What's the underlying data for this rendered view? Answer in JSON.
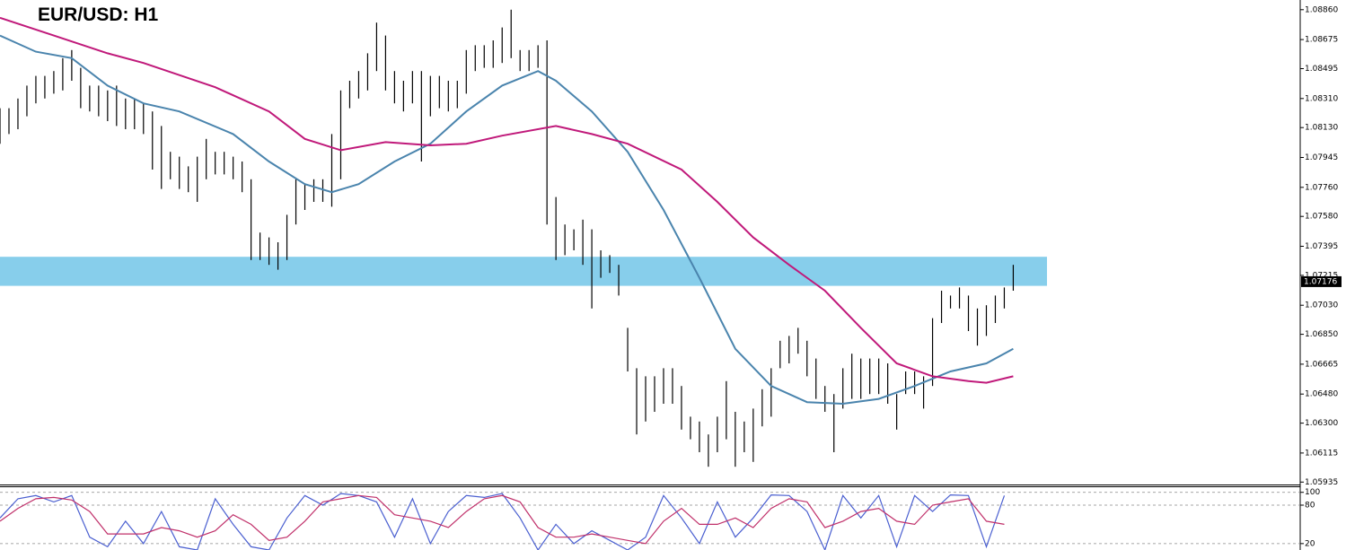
{
  "chart_data": [
    {
      "type": "ohlc",
      "title": "EUR/USD: H1",
      "xlim": [
        0,
        145
      ],
      "ylim": [
        1.0592,
        1.0892
      ],
      "yticks": [
        {
          "value": 1.0886,
          "label": "1.08860"
        },
        1.08675,
        1.08495,
        {
          "value": 1.0831,
          "label": "1.08310"
        },
        {
          "value": 1.0813,
          "label": "1.08130"
        },
        1.07945,
        {
          "value": 1.0776,
          "label": "1.07760"
        },
        {
          "value": 1.0758,
          "label": "1.07580"
        },
        1.07395,
        1.07215,
        {
          "value": 1.0703,
          "label": "1.07030"
        },
        {
          "value": 1.0685,
          "label": "1.06850"
        },
        1.06665,
        {
          "value": 1.0648,
          "label": "1.06480"
        },
        {
          "value": 1.063,
          "label": "1.06300"
        },
        1.06115,
        1.05935
      ],
      "last_price": 1.07176,
      "zone": [
        1.0715,
        1.0733
      ],
      "zone_color": "#87ceeb",
      "bars": {
        "color": "#000000",
        "high": [
          1.0825,
          1.0825,
          1.0831,
          1.0839,
          1.0845,
          1.0845,
          1.0848,
          1.0856,
          1.0861,
          1.085,
          1.0839,
          1.0839,
          1.0836,
          1.0839,
          1.0831,
          1.0831,
          1.0828,
          1.0823,
          1.0814,
          1.0798,
          1.0795,
          1.0789,
          1.0795,
          1.0806,
          1.0798,
          1.0798,
          1.0795,
          1.0792,
          1.0781,
          1.0748,
          1.0745,
          1.0742,
          1.0759,
          1.0781,
          1.0778,
          1.0781,
          1.0781,
          1.0809,
          1.0836,
          1.0842,
          1.0848,
          1.0859,
          1.0878,
          1.087,
          1.0848,
          1.0842,
          1.0848,
          1.0848,
          1.0845,
          1.0845,
          1.0842,
          1.0842,
          1.0861,
          1.0864,
          1.0864,
          1.0867,
          1.0875,
          1.0886,
          1.0861,
          1.0861,
          1.0864,
          1.0867,
          1.077,
          1.0753,
          1.075,
          1.0756,
          1.075,
          1.0737,
          1.0734,
          1.0728,
          1.0689,
          1.0664,
          1.0659,
          1.0659,
          1.0664,
          1.0664,
          1.0653,
          1.0634,
          1.0631,
          1.0623,
          1.0634,
          1.0656,
          1.0637,
          1.0631,
          1.0639,
          1.0651,
          1.0664,
          1.0681,
          1.0684,
          1.0689,
          1.0681,
          1.067,
          1.0653,
          1.0648,
          1.0664,
          1.0673,
          1.067,
          1.067,
          1.067,
          1.0667,
          1.0648,
          1.0662,
          1.0662,
          1.0659,
          1.0695,
          1.0712,
          1.0709,
          1.0714,
          1.0709,
          1.0701,
          1.0703,
          1.0709,
          1.0714,
          1.0728
        ],
        "low": [
          1.0803,
          1.0809,
          1.0812,
          1.082,
          1.0828,
          1.0831,
          1.0834,
          1.0836,
          1.0842,
          1.0825,
          1.0823,
          1.082,
          1.0817,
          1.0814,
          1.0812,
          1.0812,
          1.0809,
          1.0787,
          1.0775,
          1.0781,
          1.0775,
          1.0773,
          1.0767,
          1.0781,
          1.0784,
          1.0784,
          1.0781,
          1.0773,
          1.0731,
          1.0731,
          1.0728,
          1.0725,
          1.0731,
          1.0753,
          1.0762,
          1.0767,
          1.0767,
          1.0764,
          1.0781,
          1.0825,
          1.0831,
          1.0836,
          1.0848,
          1.0836,
          1.0828,
          1.0823,
          1.0828,
          1.0792,
          1.082,
          1.0825,
          1.0823,
          1.0825,
          1.0834,
          1.0848,
          1.085,
          1.085,
          1.0853,
          1.0856,
          1.0848,
          1.0848,
          1.085,
          1.0753,
          1.0731,
          1.0734,
          1.0737,
          1.0728,
          1.0701,
          1.072,
          1.0723,
          1.0709,
          1.0662,
          1.0623,
          1.0631,
          1.0637,
          1.0642,
          1.0642,
          1.0626,
          1.062,
          1.0612,
          1.0603,
          1.0612,
          1.062,
          1.0603,
          1.0612,
          1.0606,
          1.0628,
          1.0634,
          1.0664,
          1.0667,
          1.0673,
          1.0659,
          1.0645,
          1.0637,
          1.0612,
          1.0639,
          1.0645,
          1.0645,
          1.0648,
          1.0648,
          1.0642,
          1.0626,
          1.0648,
          1.0648,
          1.0639,
          1.0653,
          1.0692,
          1.0701,
          1.0701,
          1.0687,
          1.0678,
          1.0684,
          1.0692,
          1.0701,
          1.0712
        ]
      },
      "series": [
        {
          "color": "#4a84ad",
          "x": [
            0,
            4,
            8,
            12,
            16,
            20,
            26,
            30,
            34,
            37,
            40,
            44,
            48,
            52,
            56,
            60,
            62,
            66,
            70,
            74,
            78,
            82,
            86,
            90,
            94,
            98,
            102,
            106,
            110,
            113
          ],
          "values": [
            1.087,
            1.086,
            1.0856,
            1.0839,
            1.0828,
            1.0823,
            1.0809,
            1.0792,
            1.0778,
            1.0773,
            1.0778,
            1.0792,
            1.0803,
            1.0823,
            1.0839,
            1.0848,
            1.0842,
            1.0823,
            1.0798,
            1.0762,
            1.072,
            1.0676,
            1.0653,
            1.0643,
            1.0642,
            1.0645,
            1.0653,
            1.0662,
            1.0667,
            1.0676
          ]
        },
        {
          "color": "#c0197a",
          "x": [
            0,
            6,
            12,
            16,
            24,
            30,
            34,
            38,
            43,
            48,
            52,
            56,
            62,
            66,
            70,
            76,
            80,
            84,
            88,
            92,
            96,
            100,
            104,
            108,
            110,
            113
          ],
          "values": [
            1.0881,
            1.087,
            1.0859,
            1.0853,
            1.0838,
            1.0823,
            1.0806,
            1.0799,
            1.0804,
            1.0802,
            1.0803,
            1.0808,
            1.0814,
            1.0809,
            1.0803,
            1.0787,
            1.0767,
            1.0745,
            1.0728,
            1.0712,
            1.0689,
            1.0667,
            1.0659,
            1.0656,
            1.0655,
            1.0659
          ]
        }
      ]
    },
    {
      "type": "line",
      "xlim": [
        0,
        145
      ],
      "ylim": [
        10,
        108
      ],
      "yticks": [
        100,
        80,
        20
      ],
      "grid": "dashed",
      "x": [
        0,
        2,
        4,
        6,
        8,
        10,
        12,
        14,
        16,
        18,
        20,
        22,
        24,
        26,
        28,
        30,
        32,
        34,
        36,
        38,
        40,
        42,
        44,
        46,
        48,
        50,
        52,
        54,
        56,
        58,
        60,
        62,
        64,
        66,
        68,
        70,
        72,
        74,
        76,
        78,
        80,
        82,
        84,
        86,
        88,
        90,
        92,
        94,
        96,
        98,
        100,
        102,
        104,
        106,
        108,
        110,
        112
      ],
      "series": [
        {
          "color": "#4a5fd0",
          "values": [
            60,
            90,
            95,
            85,
            95,
            30,
            15,
            55,
            20,
            70,
            15,
            10,
            90,
            50,
            15,
            10,
            60,
            95,
            80,
            98,
            95,
            85,
            30,
            90,
            20,
            70,
            95,
            92,
            98,
            60,
            10,
            50,
            20,
            40,
            25,
            10,
            30,
            95,
            60,
            20,
            85,
            30,
            60,
            96,
            95,
            70,
            10,
            95,
            60,
            95,
            15,
            95,
            70,
            96,
            95,
            15,
            95
          ]
        },
        {
          "color": "#c0306a",
          "values": [
            55,
            75,
            90,
            92,
            88,
            70,
            35,
            35,
            35,
            45,
            40,
            30,
            40,
            65,
            50,
            25,
            30,
            55,
            85,
            90,
            95,
            92,
            65,
            60,
            55,
            45,
            70,
            90,
            95,
            85,
            45,
            30,
            30,
            35,
            30,
            25,
            20,
            55,
            75,
            50,
            50,
            60,
            45,
            75,
            90,
            85,
            45,
            55,
            70,
            75,
            55,
            50,
            80,
            85,
            90,
            55,
            50
          ]
        }
      ]
    }
  ]
}
